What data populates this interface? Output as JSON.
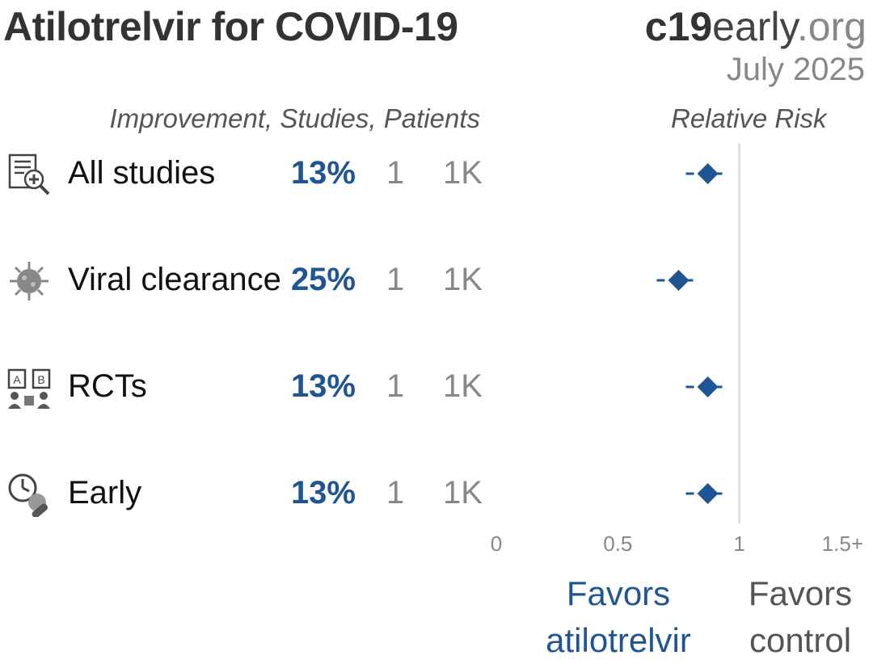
{
  "header": {
    "title": "Atilotrelvir for COVID-19",
    "brand": {
      "part1": "c19",
      "part2": "early",
      "part3": ".org"
    },
    "date": "July 2025"
  },
  "columns": {
    "left_header": "Improvement, Studies, Patients",
    "right_header": "Relative Risk"
  },
  "rows": [
    {
      "label": "All studies",
      "improvement": "13%",
      "studies": "1",
      "patients": "1K",
      "icon": "document-search-icon"
    },
    {
      "label": "Viral clearance",
      "improvement": "25%",
      "studies": "1",
      "patients": "1K",
      "icon": "virus-icon"
    },
    {
      "label": "RCTs",
      "improvement": "13%",
      "studies": "1",
      "patients": "1K",
      "icon": "ab-test-icon"
    },
    {
      "label": "Early",
      "improvement": "13%",
      "studies": "1",
      "patients": "1K",
      "icon": "clock-treatment-icon"
    }
  ],
  "footer": {
    "favors_left_line1": "Favors",
    "favors_left_line2": "atilotrelvir",
    "favors_right_line1": "Favors",
    "favors_right_line2": "control"
  },
  "colors": {
    "accent": "#1f5592",
    "muted": "#888888",
    "reference_line": "#dddddd"
  },
  "chart_data": {
    "type": "forest",
    "xlabel": "Relative Risk",
    "xlim": [
      0,
      1.5
    ],
    "tick_values": [
      0,
      0.5,
      1,
      1.5
    ],
    "tick_labels": [
      "0",
      "0.5",
      "1",
      "1.5+"
    ],
    "reference_value": 1,
    "categories": [
      "All studies",
      "Viral clearance",
      "RCTs",
      "Early"
    ],
    "points": [
      {
        "label": "All studies",
        "rr": 0.87,
        "ci_low": 0.78,
        "ci_high": 0.98
      },
      {
        "label": "Viral clearance",
        "rr": 0.75,
        "ci_low": 0.66,
        "ci_high": 0.86
      },
      {
        "label": "RCTs",
        "rr": 0.87,
        "ci_low": 0.78,
        "ci_high": 0.98
      },
      {
        "label": "Early",
        "rr": 0.87,
        "ci_low": 0.78,
        "ci_high": 0.98
      }
    ]
  }
}
